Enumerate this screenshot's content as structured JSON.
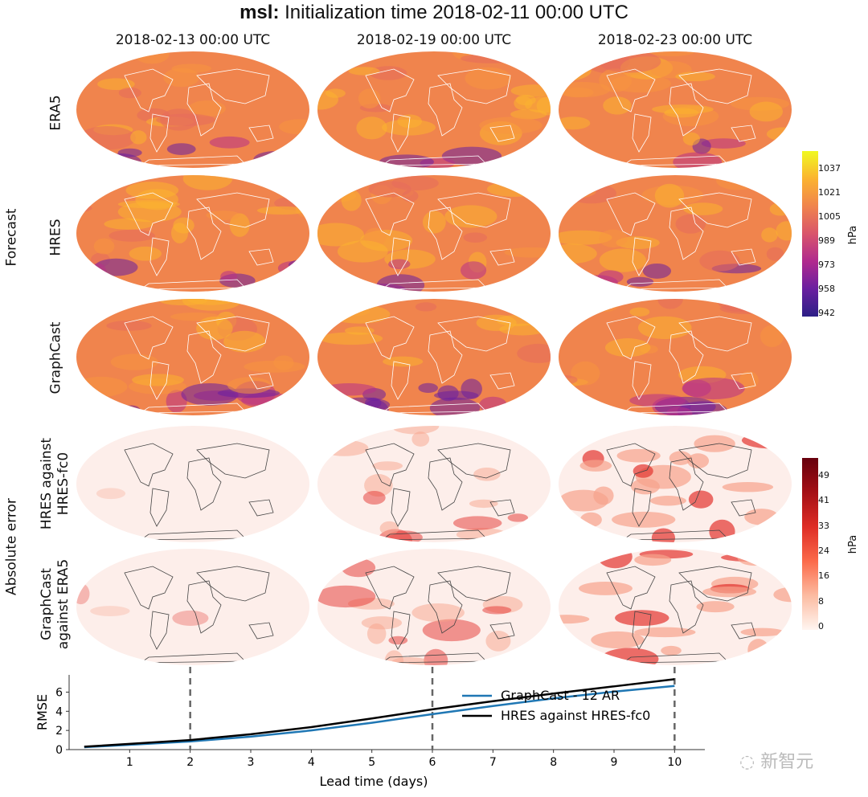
{
  "header": {
    "variable": "msl:",
    "title_rest": "Initialization time 2018-02-11 00:00 UTC"
  },
  "columns": [
    "2018-02-13 00:00 UTC",
    "2018-02-19 00:00 UTC",
    "2018-02-23 00:00 UTC"
  ],
  "group_labels": {
    "forecast": "Forecast",
    "error": "Absolute error"
  },
  "row_labels": {
    "era5": "ERA5",
    "hres": "HRES",
    "graphcast": "GraphCast",
    "hres_err_1": "HRES against",
    "hres_err_2": "HRES-fc0",
    "gc_err_1": "GraphCast",
    "gc_err_2": "against ERA5"
  },
  "colorbars": {
    "forecast": {
      "unit": "hPa",
      "ticks": [
        "1037",
        "1021",
        "1005",
        "989",
        "973",
        "958",
        "942"
      ],
      "colormap": "plasma",
      "range": [
        942,
        1045
      ]
    },
    "error": {
      "unit": "hPa",
      "ticks": [
        "49",
        "41",
        "33",
        "24",
        "16",
        "8",
        "0"
      ],
      "colormap": "reds",
      "range": [
        0,
        55
      ]
    }
  },
  "watermark": "新智元",
  "chart_data": {
    "type": "line",
    "title": "",
    "xlabel": "Lead time (days)",
    "ylabel": "RMSE",
    "xlim": [
      0,
      10.5
    ],
    "ylim": [
      0,
      7.8
    ],
    "xticks": [
      1,
      2,
      3,
      4,
      5,
      6,
      7,
      8,
      9,
      10
    ],
    "yticks": [
      0,
      2,
      4,
      6
    ],
    "vlines": [
      2,
      6,
      10
    ],
    "legend_position": "lower-right",
    "x": [
      0.25,
      1,
      2,
      3,
      4,
      5,
      6,
      7,
      8,
      9,
      10
    ],
    "series": [
      {
        "name": "GraphCast - 12 AR",
        "color": "#1f77b4",
        "values": [
          0.25,
          0.5,
          0.85,
          1.35,
          2.0,
          2.8,
          3.7,
          4.55,
          5.35,
          6.05,
          6.65
        ]
      },
      {
        "name": "HRES against HRES-fc0",
        "color": "#000000",
        "values": [
          0.3,
          0.6,
          1.0,
          1.6,
          2.35,
          3.25,
          4.2,
          5.05,
          5.85,
          6.6,
          7.35
        ]
      }
    ]
  }
}
